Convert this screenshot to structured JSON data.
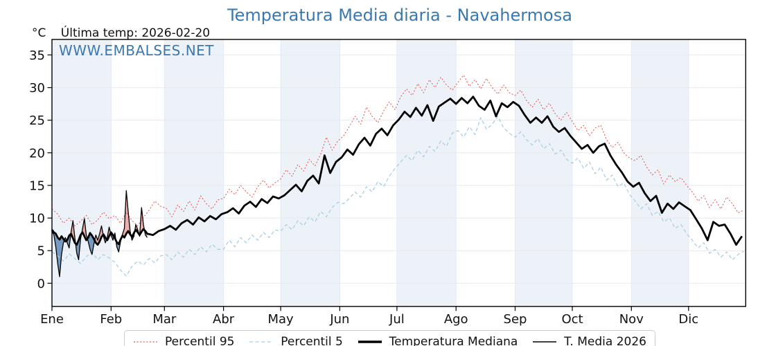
{
  "title": "Temperatura Media diaria - Navahermosa",
  "header": {
    "unit": "°C",
    "last_temp": "Última temp: 2026-02-20"
  },
  "watermark": "WWW.EMBALSES.NET",
  "colors": {
    "title": "#3b78ae",
    "watermark": "#3b78ae",
    "band": "#edf2f9",
    "grid_h": "#e8e8ed",
    "grid_v": "#e3eaf3",
    "axis": "#000000",
    "tick_text": "#111111",
    "legend_border": "#cccccc"
  },
  "chart_data": {
    "type": "line",
    "title": "Temperatura Media diaria - Navahermosa",
    "ylabel": "°C",
    "ylim": [
      -3.5,
      37.4
    ],
    "yticks": [
      0,
      5,
      10,
      15,
      20,
      25,
      30,
      35
    ],
    "x_tick_labels": [
      "Ene",
      "Feb",
      "Mar",
      "Abr",
      "May",
      "Jun",
      "Jul",
      "Ago",
      "Sep",
      "Oct",
      "Nov",
      "Dic"
    ],
    "month_start_days": [
      1,
      32,
      60,
      91,
      121,
      152,
      182,
      213,
      244,
      274,
      305,
      335
    ],
    "days_in_year": 365,
    "grid": true,
    "shaded_months": [
      "Ene",
      "Mar",
      "May",
      "Jul",
      "Sep",
      "Nov"
    ],
    "legend_position": "bottom",
    "series": [
      {
        "name": "Percentil 95",
        "style": "dotted",
        "color": "#e85b55",
        "width": 1.1,
        "x_segments": [
          {
            "start": 1,
            "step": 3,
            "count": 122
          }
        ],
        "y": [
          11.4,
          10.6,
          9.2,
          10.0,
          8.8,
          9.5,
          10.4,
          9.0,
          9.7,
          10.9,
          9.9,
          10.4,
          9.2,
          10.9,
          9.6,
          8.8,
          10.1,
          11.2,
          12.6,
          11.8,
          11.5,
          10.2,
          12.0,
          11.0,
          12.6,
          11.2,
          13.4,
          12.2,
          11.4,
          12.8,
          13.0,
          14.4,
          13.6,
          15.0,
          14.0,
          13.2,
          14.8,
          15.8,
          14.6,
          15.4,
          16.0,
          17.4,
          16.4,
          18.2,
          17.2,
          19.0,
          18.0,
          19.8,
          22.4,
          20.4,
          21.8,
          22.6,
          24.0,
          25.6,
          24.4,
          27.0,
          25.6,
          24.6,
          26.4,
          27.8,
          26.6,
          28.6,
          29.8,
          28.8,
          30.6,
          29.2,
          31.2,
          30.0,
          31.6,
          30.4,
          29.6,
          30.8,
          31.9,
          30.2,
          31.2,
          29.8,
          31.4,
          30.0,
          29.0,
          30.4,
          29.2,
          28.8,
          29.6,
          28.0,
          27.0,
          28.2,
          26.6,
          27.6,
          26.0,
          25.0,
          26.2,
          24.8,
          23.4,
          24.2,
          22.6,
          23.8,
          24.2,
          22.0,
          20.8,
          21.6,
          20.0,
          19.2,
          18.8,
          19.6,
          17.8,
          16.6,
          17.4,
          15.2,
          16.6,
          15.6,
          16.2,
          15.0,
          14.0,
          12.6,
          13.4,
          11.6,
          12.8,
          11.4,
          13.2,
          12.2,
          10.8,
          11.2
        ]
      },
      {
        "name": "Percentil 5",
        "style": "dashed",
        "color": "#a9cfe4",
        "width": 1.3,
        "x_segments": [
          {
            "start": 1,
            "step": 3,
            "count": 122
          }
        ],
        "y": [
          4.8,
          4.2,
          3.4,
          4.5,
          3.8,
          3.0,
          4.1,
          4.8,
          3.6,
          4.4,
          3.9,
          3.2,
          2.0,
          1.1,
          2.6,
          3.4,
          2.8,
          3.8,
          3.1,
          4.2,
          4.4,
          3.6,
          4.8,
          4.0,
          5.2,
          4.4,
          5.6,
          4.8,
          6.0,
          5.2,
          5.2,
          6.6,
          5.6,
          7.0,
          6.2,
          7.4,
          6.6,
          7.8,
          7.0,
          8.2,
          8.0,
          9.0,
          8.2,
          9.6,
          8.8,
          10.2,
          9.4,
          11.0,
          10.2,
          11.6,
          12.4,
          12.2,
          13.0,
          14.0,
          13.2,
          14.8,
          14.0,
          15.6,
          14.8,
          16.4,
          17.6,
          18.6,
          19.6,
          18.8,
          20.4,
          19.4,
          21.0,
          20.2,
          21.8,
          21.0,
          23.0,
          23.4,
          22.4,
          24.0,
          22.8,
          25.4,
          23.6,
          24.4,
          25.6,
          23.8,
          23.0,
          22.4,
          23.2,
          22.0,
          21.2,
          22.2,
          20.6,
          21.4,
          19.8,
          20.4,
          19.0,
          18.4,
          19.2,
          17.6,
          18.6,
          16.8,
          17.8,
          15.8,
          16.6,
          14.8,
          15.4,
          13.6,
          12.6,
          11.4,
          12.2,
          10.4,
          11.0,
          9.4,
          10.0,
          8.4,
          9.0,
          7.6,
          6.6,
          5.4,
          6.2,
          4.6,
          5.2,
          4.0,
          4.8,
          3.6,
          4.4,
          4.9
        ]
      },
      {
        "name": "Temperatura Mediana",
        "style": "solid",
        "color": "#000000",
        "width": 2.8,
        "x_segments": [
          {
            "start": 1,
            "step": 1,
            "count": 51
          },
          {
            "start": 54,
            "step": 3,
            "count": 104
          }
        ],
        "y": [
          8.2,
          7.8,
          7.6,
          7.0,
          6.7,
          7.2,
          6.8,
          6.4,
          6.6,
          7.3,
          7.6,
          6.9,
          6.2,
          5.9,
          6.6,
          7.4,
          7.8,
          7.2,
          6.6,
          7.0,
          7.7,
          7.3,
          6.8,
          6.2,
          5.9,
          6.4,
          7.1,
          7.5,
          7.0,
          6.6,
          7.2,
          7.8,
          7.4,
          6.9,
          6.3,
          6.0,
          6.7,
          7.3,
          7.0,
          7.6,
          8.0,
          7.5,
          7.1,
          7.7,
          8.2,
          7.8,
          7.4,
          7.9,
          8.3,
          8.0,
          7.6,
          7.4,
          8.0,
          8.3,
          8.8,
          8.2,
          9.2,
          9.7,
          9.0,
          10.1,
          9.5,
          10.3,
          9.8,
          10.6,
          10.9,
          11.5,
          10.7,
          11.9,
          12.5,
          11.7,
          12.9,
          12.3,
          13.3,
          13.0,
          13.5,
          14.3,
          15.1,
          14.1,
          15.7,
          16.5,
          15.3,
          19.6,
          16.9,
          18.6,
          19.3,
          20.5,
          19.7,
          21.3,
          22.3,
          21.1,
          22.9,
          23.7,
          22.7,
          24.2,
          25.1,
          26.3,
          25.5,
          26.9,
          25.7,
          27.3,
          24.9,
          27.1,
          27.7,
          28.3,
          27.5,
          28.4,
          27.6,
          28.6,
          27.2,
          26.6,
          28.0,
          25.6,
          27.6,
          27.0,
          27.8,
          27.2,
          25.8,
          24.6,
          25.4,
          24.6,
          25.6,
          24.0,
          23.2,
          23.8,
          22.6,
          21.6,
          20.6,
          21.2,
          20.0,
          21.0,
          21.4,
          19.6,
          18.2,
          17.0,
          15.6,
          14.8,
          15.4,
          13.8,
          12.6,
          13.4,
          10.8,
          12.2,
          11.4,
          12.4,
          11.8,
          11.2,
          9.8,
          8.4,
          6.6,
          9.4,
          8.8,
          9.0,
          7.6,
          5.9,
          7.2
        ]
      },
      {
        "name": "T. Media 2026",
        "style": "solid",
        "color": "#000000",
        "width": 1.3,
        "x_segments": [
          {
            "start": 1,
            "step": 1,
            "count": 51
          }
        ],
        "y": [
          8.0,
          7.4,
          5.6,
          3.0,
          1.0,
          4.4,
          6.2,
          7.0,
          6.2,
          5.4,
          7.8,
          9.6,
          7.0,
          4.6,
          3.6,
          6.8,
          8.3,
          9.9,
          7.4,
          6.4,
          5.2,
          4.4,
          6.0,
          7.4,
          6.6,
          7.6,
          8.8,
          7.2,
          6.2,
          7.0,
          8.6,
          7.4,
          6.6,
          7.7,
          5.6,
          4.8,
          6.4,
          7.5,
          8.4,
          14.2,
          11.0,
          8.0,
          6.6,
          7.2,
          9.0,
          8.2,
          7.2,
          11.6,
          9.0,
          7.4,
          7.0
        ],
        "fill_vs": "Temperatura Mediana",
        "fill_above": "rgba(222,97,86,0.50)",
        "fill_below": "rgba(62,112,166,0.68)"
      }
    ]
  }
}
